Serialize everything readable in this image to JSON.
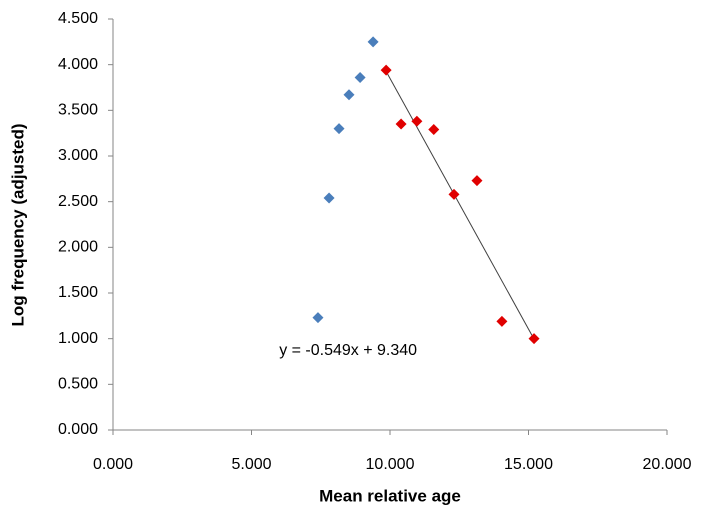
{
  "chart_data": {
    "type": "scatter",
    "x_label": "Mean relative age",
    "y_label": "Log frequency (adjusted)",
    "xlim": [
      0,
      20
    ],
    "ylim": [
      0,
      4.5
    ],
    "xticks": [
      {
        "value": 0,
        "label": "0.000"
      },
      {
        "value": 5,
        "label": "5.000"
      },
      {
        "value": 10,
        "label": "10.000"
      },
      {
        "value": 15,
        "label": "15.000"
      },
      {
        "value": 20,
        "label": "20.000"
      }
    ],
    "yticks": [
      {
        "value": 0,
        "label": "0.000"
      },
      {
        "value": 0.5,
        "label": "0.500"
      },
      {
        "value": 1,
        "label": "1.000"
      },
      {
        "value": 1.5,
        "label": "1.500"
      },
      {
        "value": 2,
        "label": "2.000"
      },
      {
        "value": 2.5,
        "label": "2.500"
      },
      {
        "value": 3,
        "label": "3.000"
      },
      {
        "value": 3.5,
        "label": "3.500"
      },
      {
        "value": 4,
        "label": "4.000"
      },
      {
        "value": 4.5,
        "label": "4.500"
      }
    ],
    "grid": false,
    "series": [
      {
        "color": "#4a7ebb",
        "x": [
          7.4,
          7.8,
          8.16,
          8.52,
          8.92,
          9.39
        ],
        "values": [
          1.23,
          2.54,
          3.3,
          3.67,
          3.86,
          4.25
        ]
      },
      {
        "color": "#e00000",
        "x": [
          9.86,
          10.4,
          10.97,
          11.58,
          12.31,
          13.14,
          14.04,
          15.2
        ],
        "values": [
          3.94,
          3.35,
          3.38,
          3.29,
          2.58,
          2.73,
          1.19,
          1.0
        ],
        "trendline": {
          "slope": -0.549,
          "intercept": 9.34,
          "label": "y = -0.549x + 9.340"
        }
      }
    ]
  }
}
